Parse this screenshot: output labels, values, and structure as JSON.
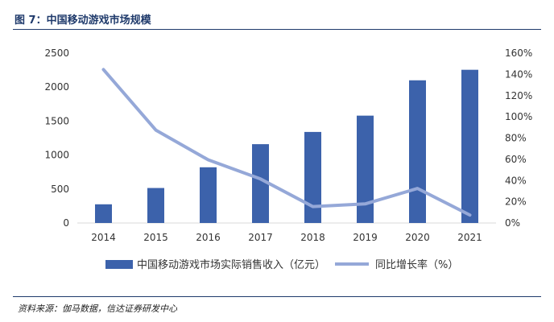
{
  "header": {
    "title": "图 7：中国移动游戏市场规模"
  },
  "footer": {
    "source": "资料来源：伽马数据，信达证券研发中心"
  },
  "colors": {
    "bar": "#3c62ab",
    "line": "#95a8d8",
    "header_rule": "#1f3a6b",
    "axis": "#d9d9d9"
  },
  "chart_data": {
    "type": "bar",
    "title": "",
    "categories": [
      "2014",
      "2015",
      "2016",
      "2017",
      "2018",
      "2019",
      "2020",
      "2021"
    ],
    "series": [
      {
        "name": "中国移动游戏市场实际销售收入（亿元）",
        "type": "bar",
        "axis": "left",
        "values": [
          275,
          515,
          820,
          1160,
          1340,
          1580,
          2100,
          2255
        ]
      },
      {
        "name": "同比增长率（%）",
        "type": "line",
        "axis": "right",
        "values": [
          144.5,
          87.5,
          59.5,
          41.5,
          15.5,
          18,
          32.5,
          7.5
        ]
      }
    ],
    "y_left": {
      "min": 0,
      "max": 2500,
      "ticks": [
        "0",
        "500",
        "1000",
        "1500",
        "2000",
        "2500"
      ]
    },
    "y_right": {
      "min": 0,
      "max": 160,
      "ticks": [
        "0%",
        "20%",
        "40%",
        "60%",
        "80%",
        "100%",
        "120%",
        "140%",
        "160%"
      ]
    },
    "grid": false,
    "legend": "bottom"
  }
}
